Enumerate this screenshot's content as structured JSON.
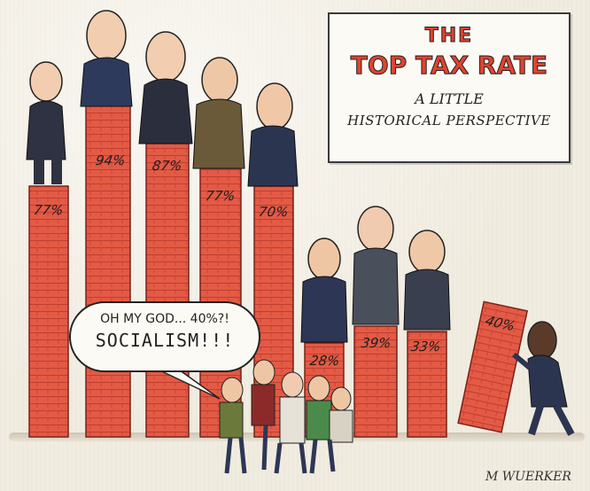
{
  "title_box": {
    "line1": "THE",
    "line2": "TOP TAX RATE",
    "line3": "A LITTLE",
    "line4": "HISTORICAL PERSPECTIVE"
  },
  "bars": [
    {
      "label": "77%",
      "value": 77
    },
    {
      "label": "94%",
      "value": 94
    },
    {
      "label": "87%",
      "value": 87
    },
    {
      "label": "77%",
      "value": 77
    },
    {
      "label": "70%",
      "value": 70
    },
    {
      "label": "28%",
      "value": 28
    },
    {
      "label": "39%",
      "value": 39
    },
    {
      "label": "33%",
      "value": 33
    },
    {
      "label": "40%",
      "value": 40
    }
  ],
  "speech_bubble": {
    "line1": "OH MY GOD... 40%?!",
    "line2": "SOCIALISM!!!"
  },
  "signature": "M WUERKER",
  "colors": {
    "bar_fill": "#e35a45",
    "bar_brick": "#c2392a",
    "title_red": "#e0432f"
  }
}
